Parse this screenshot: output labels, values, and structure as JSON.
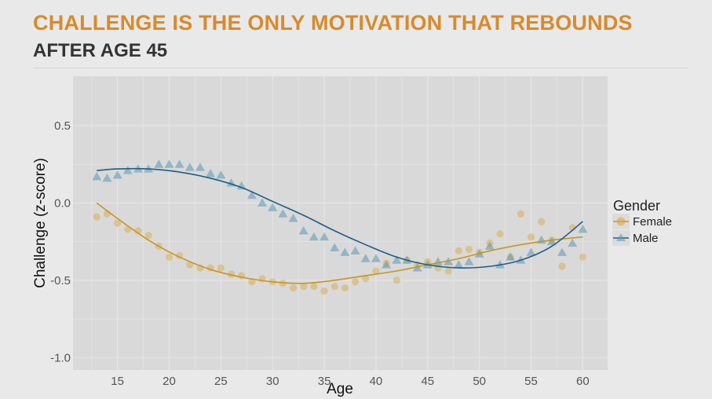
{
  "header": {
    "title_line1": "CHALLENGE IS THE ONLY MOTIVATION THAT REBOUNDS",
    "title_line2": "AFTER AGE 45"
  },
  "colors": {
    "female": "#d9a73c",
    "male": "#5a97b5",
    "female_line": "#c9961f",
    "male_line": "#1d5e86",
    "panel": "#d9d9d9",
    "grid": "#e6e6e6"
  },
  "chart_data": {
    "type": "scatter",
    "title": "CHALLENGE IS THE ONLY MOTIVATION THAT REBOUNDS AFTER AGE 45",
    "xlabel": "Age",
    "ylabel": "Challenge (z-score)",
    "xlim": [
      10.7,
      62.4
    ],
    "ylim": [
      -1.08,
      0.82
    ],
    "xticks": [
      15,
      20,
      25,
      30,
      35,
      40,
      45,
      50,
      55,
      60
    ],
    "yticks": [
      0.5,
      0.0,
      -0.5,
      -1.0
    ],
    "ytick_labels": [
      "0.5",
      "0.0",
      "-0.5",
      "-1.0"
    ],
    "legend": {
      "title": "Gender",
      "position": "right",
      "entries": [
        "Female",
        "Male"
      ]
    },
    "series": [
      {
        "name": "Female",
        "marker": "circle",
        "x": [
          13,
          14,
          15,
          16,
          17,
          18,
          19,
          20,
          21,
          22,
          23,
          24,
          25,
          26,
          27,
          28,
          29,
          30,
          31,
          32,
          33,
          34,
          35,
          36,
          37,
          38,
          39,
          40,
          41,
          42,
          43,
          44,
          45,
          46,
          47,
          48,
          49,
          50,
          51,
          52,
          53,
          54,
          55,
          56,
          57,
          58,
          59,
          60
        ],
        "values": [
          -0.09,
          -0.07,
          -0.13,
          -0.17,
          -0.18,
          -0.21,
          -0.28,
          -0.35,
          -0.34,
          -0.4,
          -0.42,
          -0.42,
          -0.42,
          -0.46,
          -0.47,
          -0.51,
          -0.49,
          -0.51,
          -0.52,
          -0.55,
          -0.54,
          -0.54,
          -0.57,
          -0.54,
          -0.55,
          -0.51,
          -0.49,
          -0.44,
          -0.39,
          -0.5,
          -0.37,
          -0.4,
          -0.38,
          -0.42,
          -0.44,
          -0.31,
          -0.3,
          -0.32,
          -0.26,
          -0.2,
          -0.35,
          -0.07,
          -0.22,
          -0.12,
          -0.24,
          -0.41,
          -0.16,
          -0.35
        ],
        "trend_x": [
          13,
          15,
          18,
          21,
          24,
          27,
          30,
          33,
          36,
          39,
          42,
          45,
          48,
          51,
          54,
          57,
          60
        ],
        "trend_y": [
          0.0,
          -0.1,
          -0.24,
          -0.35,
          -0.43,
          -0.48,
          -0.51,
          -0.52,
          -0.5,
          -0.47,
          -0.44,
          -0.4,
          -0.36,
          -0.31,
          -0.27,
          -0.24,
          -0.22
        ]
      },
      {
        "name": "Male",
        "marker": "triangle",
        "x": [
          13,
          14,
          15,
          16,
          17,
          18,
          19,
          20,
          21,
          22,
          23,
          24,
          25,
          26,
          27,
          28,
          29,
          30,
          31,
          32,
          33,
          34,
          35,
          36,
          37,
          38,
          39,
          40,
          41,
          42,
          43,
          44,
          45,
          46,
          47,
          48,
          49,
          50,
          51,
          52,
          53,
          54,
          55,
          56,
          57,
          58,
          59,
          60
        ],
        "values": [
          0.17,
          0.16,
          0.18,
          0.21,
          0.22,
          0.22,
          0.25,
          0.25,
          0.25,
          0.23,
          0.23,
          0.19,
          0.18,
          0.13,
          0.11,
          0.05,
          0.0,
          -0.03,
          -0.07,
          -0.1,
          -0.18,
          -0.22,
          -0.22,
          -0.29,
          -0.32,
          -0.31,
          -0.36,
          -0.36,
          -0.4,
          -0.37,
          -0.37,
          -0.42,
          -0.4,
          -0.38,
          -0.38,
          -0.4,
          -0.38,
          -0.33,
          -0.28,
          -0.4,
          -0.35,
          -0.37,
          -0.32,
          -0.24,
          -0.25,
          -0.32,
          -0.26,
          -0.17
        ],
        "trend_x": [
          13,
          15,
          18,
          21,
          24,
          27,
          30,
          33,
          36,
          39,
          42,
          45,
          48,
          51,
          54,
          57,
          60
        ],
        "trend_y": [
          0.21,
          0.22,
          0.22,
          0.2,
          0.16,
          0.1,
          0.01,
          -0.08,
          -0.18,
          -0.27,
          -0.35,
          -0.4,
          -0.42,
          -0.41,
          -0.37,
          -0.28,
          -0.12
        ]
      }
    ]
  }
}
